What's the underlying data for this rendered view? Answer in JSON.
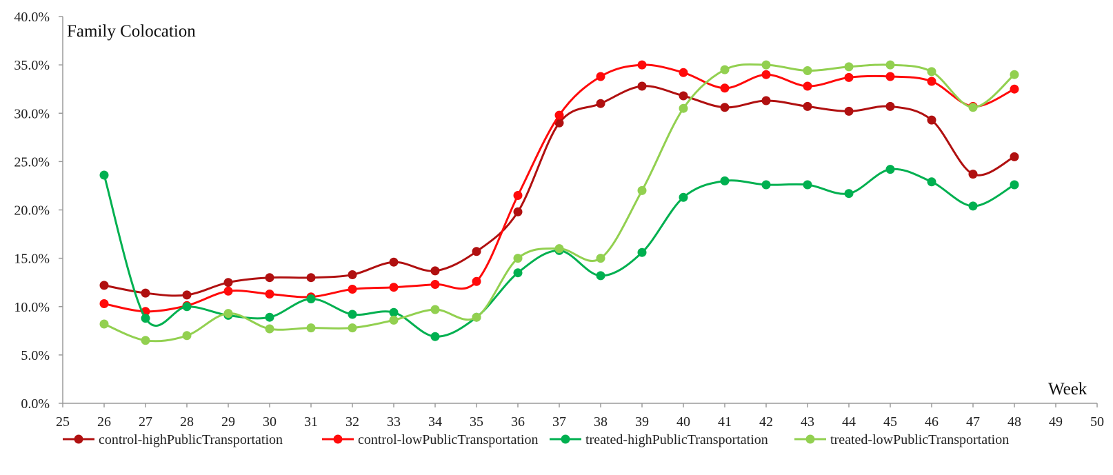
{
  "chart_data": {
    "type": "line",
    "ylabel": "Family Colocation",
    "xlabel": "Week",
    "xlim": [
      25,
      50
    ],
    "ylim": [
      0,
      40
    ],
    "x_ticks": [
      "25",
      "26",
      "27",
      "28",
      "29",
      "30",
      "31",
      "32",
      "33",
      "34",
      "35",
      "36",
      "37",
      "38",
      "39",
      "40",
      "41",
      "42",
      "43",
      "44",
      "45",
      "46",
      "47",
      "48",
      "49",
      "50"
    ],
    "y_ticks": [
      "0.0%",
      "5.0%",
      "10.0%",
      "15.0%",
      "20.0%",
      "25.0%",
      "30.0%",
      "35.0%",
      "40.0%"
    ],
    "y_tick_values": [
      0,
      5,
      10,
      15,
      20,
      25,
      30,
      35,
      40
    ],
    "x": [
      26,
      27,
      28,
      29,
      30,
      31,
      32,
      33,
      34,
      35,
      36,
      37,
      38,
      39,
      40,
      41,
      42,
      43,
      44,
      45,
      46,
      47,
      48
    ],
    "grid": false,
    "legend_position": "bottom",
    "series": [
      {
        "name": "control-highPublicTransportation",
        "color": "#b01010",
        "values": [
          12.2,
          11.4,
          11.2,
          12.5,
          13.0,
          13.0,
          13.3,
          14.6,
          13.7,
          15.7,
          19.8,
          29.0,
          31.0,
          32.8,
          31.8,
          30.6,
          31.3,
          30.7,
          30.2,
          30.7,
          29.3,
          23.7,
          25.5
        ]
      },
      {
        "name": "control-lowPublicTransportation",
        "color": "#ff0a0a",
        "values": [
          10.3,
          9.5,
          10.1,
          11.6,
          11.3,
          11.0,
          11.8,
          12.0,
          12.3,
          12.6,
          21.5,
          29.8,
          33.8,
          35.0,
          34.2,
          32.6,
          34.0,
          32.8,
          33.7,
          33.8,
          33.3,
          30.7,
          32.5
        ]
      },
      {
        "name": "treated-highPublicTransportation",
        "color": "#00b050",
        "values": [
          23.6,
          8.8,
          10.0,
          9.1,
          8.9,
          10.8,
          9.2,
          9.4,
          6.9,
          8.9,
          13.5,
          15.8,
          13.2,
          15.6,
          21.3,
          23.0,
          22.6,
          22.6,
          21.7,
          24.2,
          22.9,
          20.4,
          22.6
        ]
      },
      {
        "name": "treated-lowPublicTransportation",
        "color": "#92d050",
        "values": [
          8.2,
          6.5,
          7.0,
          9.3,
          7.7,
          7.8,
          7.8,
          8.6,
          9.7,
          8.9,
          15.0,
          16.0,
          15.0,
          22.0,
          30.5,
          34.5,
          35.0,
          34.4,
          34.8,
          35.0,
          34.3,
          30.6,
          34.0
        ]
      }
    ]
  }
}
